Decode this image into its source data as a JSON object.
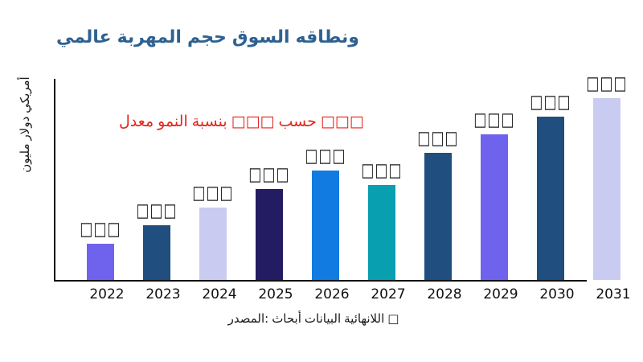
{
  "colors": {
    "background": "#FFFFFF",
    "title": "#2E6191",
    "annotation": "#E4251C",
    "axis_line": "#111111",
    "value_label": "#1A1A1A",
    "tick_label": "#111111",
    "source": "#1A1A1A"
  },
  "source": {
    "text": "المصدر: أبحاث البيانات اللانهائية □"
  },
  "chart_data": {
    "type": "bar",
    "title": "عالمي المهربة حجم السوق ونطاقه",
    "annotation": "معدل النمو بنسبة □□□ حسب □□□",
    "ylabel": "مليون دولار أمريكي",
    "xlabel": "",
    "categories": [
      "2022",
      "2023",
      "2024",
      "2025",
      "2026",
      "2027",
      "2028",
      "2029",
      "2030",
      "2031"
    ],
    "values_relative_pct_of_max": [
      20,
      30,
      40,
      50,
      60,
      52,
      70,
      80,
      90,
      100
    ],
    "value_labels": [
      "□□□",
      "□□□",
      "□□□",
      "□□□",
      "□□□",
      "□□□",
      "□□□",
      "□□□",
      "□□□",
      "□□□"
    ],
    "bar_colors": [
      "#6F63EE",
      "#1F4E7F",
      "#C9CCF0",
      "#231C63",
      "#117BE2",
      "#089FB0",
      "#1F4E7F",
      "#6F63EE",
      "#1F4E7F",
      "#C9CCF0"
    ],
    "legend": "none",
    "grid": false,
    "y_axis_ticks": "hidden",
    "ylim": [
      0,
      110
    ]
  }
}
